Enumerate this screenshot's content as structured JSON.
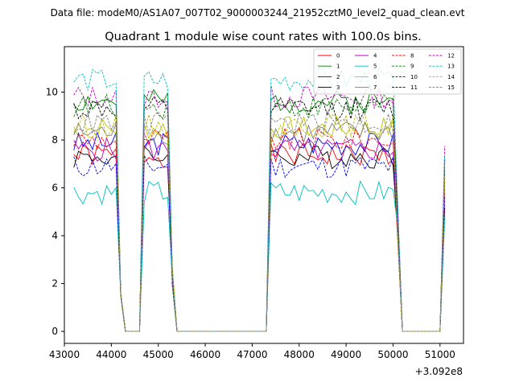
{
  "chart_data": {
    "type": "line",
    "suptitle": "Data file: modeM0/AS1A07_007T02_9000003244_21952cztM0_level2_quad_clean.evt",
    "title": "Quadrant 1 module wise count rates with 100.0s bins.",
    "xlabel": "",
    "ylabel": "",
    "x_offset_label": "+3.092e8",
    "xlim": [
      43000,
      51500
    ],
    "ylim": [
      -0.5,
      11.9
    ],
    "x_ticks": [
      43000,
      44000,
      45000,
      46000,
      47000,
      48000,
      49000,
      50000,
      51000
    ],
    "x_tick_labels": [
      "43000",
      "44000",
      "45000",
      "46000",
      "47000",
      "48000",
      "49000",
      "50000",
      "51000"
    ],
    "y_ticks": [
      0,
      2,
      4,
      6,
      8,
      10
    ],
    "y_tick_labels": [
      "0",
      "2",
      "4",
      "6",
      "8",
      "10"
    ],
    "grid": false,
    "legend_position": "top-right",
    "legend_columns": 4,
    "segments": [
      [
        43200,
        44100
      ],
      [
        44700,
        45200
      ],
      [
        47350,
        50000
      ]
    ],
    "series": [
      {
        "name": "0",
        "color": "#ff0000",
        "dash": "solid",
        "level": 7.35
      },
      {
        "name": "1",
        "color": "#008000",
        "dash": "solid",
        "level": 9.6
      },
      {
        "name": "2",
        "color": "#0000ff",
        "dash": "solid",
        "level": 7.85
      },
      {
        "name": "3",
        "color": "#000000",
        "dash": "solid",
        "level": 7.3
      },
      {
        "name": "4",
        "color": "#bf00bf",
        "dash": "solid",
        "level": 7.6
      },
      {
        "name": "5",
        "color": "#00bfbf",
        "dash": "solid",
        "level": 5.8
      },
      {
        "name": "6",
        "color": "#bfbf00",
        "dash": "solid",
        "level": 8.5
      },
      {
        "name": "7",
        "color": "#808080",
        "dash": "solid",
        "level": 8.3
      },
      {
        "name": "8",
        "color": "#ff0000",
        "dash": "dashed",
        "level": 8.0
      },
      {
        "name": "9",
        "color": "#008000",
        "dash": "dashed",
        "level": 9.4
      },
      {
        "name": "10",
        "color": "#0000ff",
        "dash": "dashed",
        "level": 6.9
      },
      {
        "name": "11",
        "color": "#000000",
        "dash": "dashed",
        "level": 9.3
      },
      {
        "name": "12",
        "color": "#bf00bf",
        "dash": "dashed",
        "level": 9.8
      },
      {
        "name": "13",
        "color": "#00bfbf",
        "dash": "dashed",
        "level": 10.5
      },
      {
        "name": "14",
        "color": "#bfbf00",
        "dash": "dashed",
        "level": 8.6
      },
      {
        "name": "15",
        "color": "#808080",
        "dash": "dashed",
        "level": 8.7
      }
    ]
  }
}
